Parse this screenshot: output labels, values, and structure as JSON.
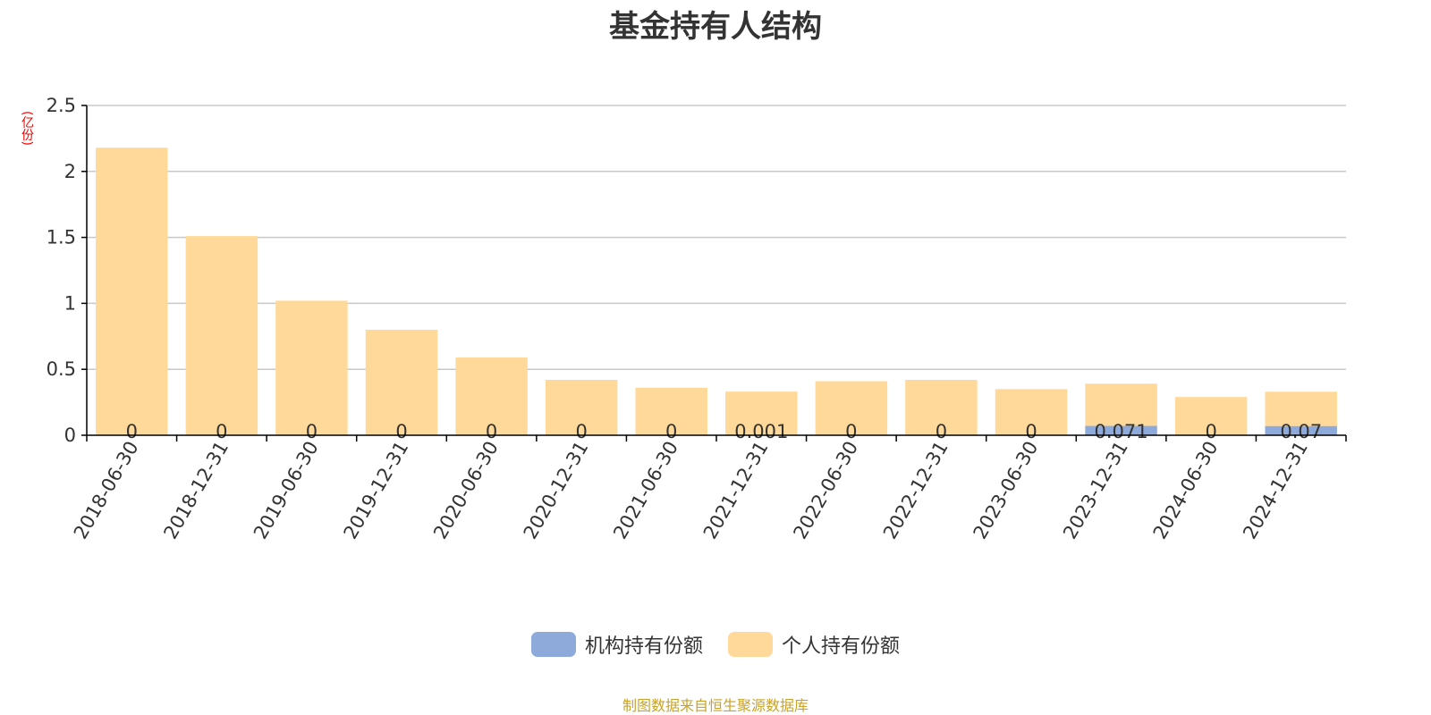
{
  "title": "基金持有人结构",
  "unit_label": "(亿份)",
  "source": "制图数据来自恒生聚源数据库",
  "colors": {
    "institutional": "#8eaadb",
    "individual": "#ffd999",
    "axis": "#000000",
    "grid": "#c8c8c8",
    "text": "#333333",
    "unit": "#ff0000",
    "source": "#c9a227"
  },
  "chart_data": {
    "type": "bar",
    "stacked": true,
    "categories": [
      "2018-06-30",
      "2018-12-31",
      "2019-06-30",
      "2019-12-31",
      "2020-06-30",
      "2020-12-31",
      "2021-06-30",
      "2021-12-31",
      "2022-06-30",
      "2022-12-31",
      "2023-06-30",
      "2023-12-31",
      "2024-06-30",
      "2024-12-31"
    ],
    "series": [
      {
        "name": "机构持有份额",
        "values": [
          0,
          0,
          0,
          0,
          0,
          0,
          0,
          0.001,
          0,
          0,
          0,
          0.071,
          0,
          0.07
        ],
        "labels": [
          "0",
          "0",
          "0",
          "0",
          "0",
          "0",
          "0",
          "0.001",
          "0",
          "0",
          "0",
          "0.071",
          "0",
          "0.07"
        ]
      },
      {
        "name": "个人持有份额",
        "values": [
          2.18,
          1.51,
          1.02,
          0.8,
          0.59,
          0.42,
          0.36,
          0.33,
          0.41,
          0.42,
          0.35,
          0.32,
          0.29,
          0.26
        ]
      }
    ],
    "ylim": [
      0,
      2.5
    ],
    "yticks": [
      "0",
      "0.5",
      "1",
      "1.5",
      "2",
      "2.5"
    ],
    "grid": true,
    "legend": "bottom-center"
  }
}
